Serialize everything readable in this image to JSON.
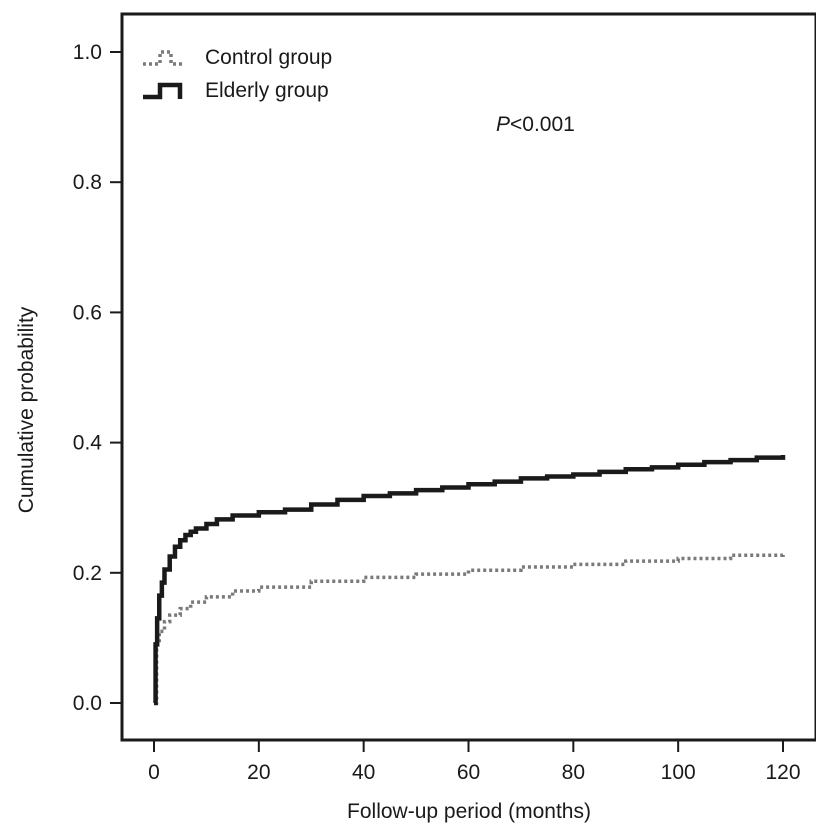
{
  "chart_data": {
    "type": "line",
    "title": "",
    "xlabel": "Follow-up period (months)",
    "ylabel": "Cumulative probability",
    "xlim": [
      0,
      120
    ],
    "ylim": [
      0,
      1.0
    ],
    "x_ticks": [
      0,
      20,
      40,
      60,
      80,
      100,
      120
    ],
    "x_tick_labels": [
      "0",
      "20",
      "40",
      "60",
      "80",
      "100",
      "120"
    ],
    "y_ticks": [
      0,
      0.2,
      0.4,
      0.6,
      0.8,
      1.0
    ],
    "y_tick_labels": [
      "0.0",
      "0.2",
      "0.4",
      "0.6",
      "0.8",
      "1.0"
    ],
    "grid": false,
    "legend_position": "top-left",
    "annotation": {
      "italic_prefix": "P",
      "rest": "<0.001"
    },
    "series": [
      {
        "name": "Control group",
        "style": "dotted",
        "color": "#7a7a7a",
        "x": [
          0,
          0.5,
          1,
          2,
          3,
          5,
          7,
          10,
          15,
          20,
          30,
          40,
          50,
          60,
          70,
          80,
          90,
          100,
          110,
          120
        ],
        "y": [
          0,
          0.09,
          0.11,
          0.125,
          0.135,
          0.145,
          0.155,
          0.163,
          0.172,
          0.178,
          0.187,
          0.193,
          0.198,
          0.204,
          0.209,
          0.213,
          0.218,
          0.222,
          0.227,
          0.232
        ]
      },
      {
        "name": "Elderly group",
        "style": "solid",
        "color": "#1a1a1a",
        "x": [
          0,
          0.3,
          0.6,
          1,
          1.5,
          2,
          3,
          4,
          5,
          6,
          7,
          8,
          10,
          12,
          15,
          20,
          25,
          30,
          35,
          40,
          45,
          50,
          55,
          60,
          65,
          70,
          75,
          80,
          85,
          90,
          95,
          100,
          105,
          110,
          115,
          120
        ],
        "y": [
          0,
          0.09,
          0.13,
          0.165,
          0.185,
          0.205,
          0.225,
          0.24,
          0.25,
          0.258,
          0.263,
          0.268,
          0.275,
          0.282,
          0.288,
          0.293,
          0.297,
          0.305,
          0.312,
          0.318,
          0.322,
          0.327,
          0.331,
          0.336,
          0.34,
          0.345,
          0.348,
          0.351,
          0.355,
          0.359,
          0.362,
          0.366,
          0.37,
          0.373,
          0.377,
          0.381
        ]
      }
    ]
  }
}
